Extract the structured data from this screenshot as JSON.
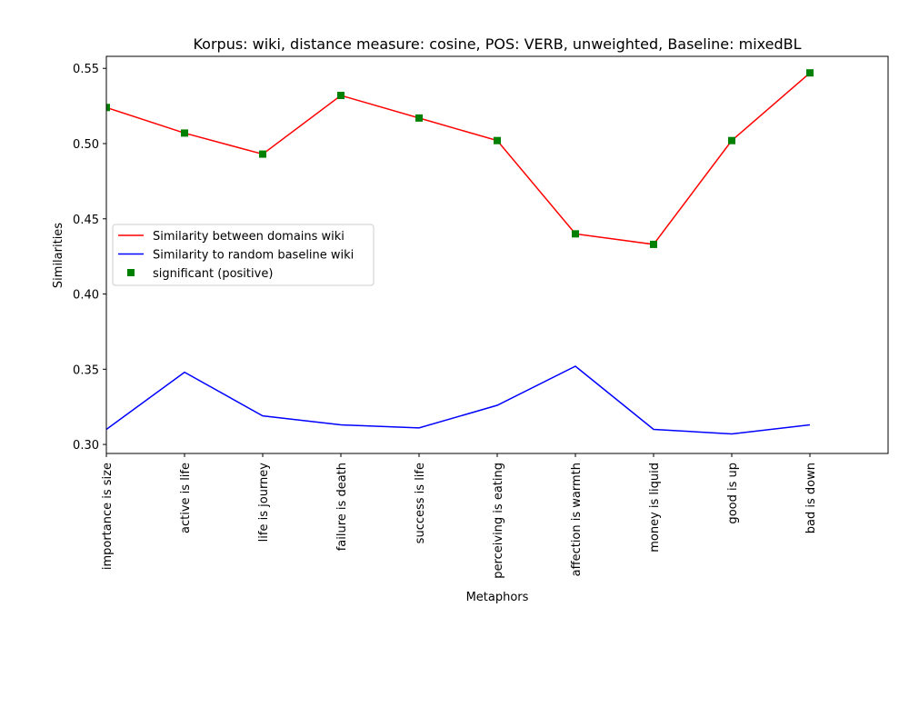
{
  "chart_data": {
    "type": "line",
    "title": "Korpus: wiki, distance measure: cosine, POS: VERB, unweighted, Baseline: mixedBL",
    "xlabel": "Metaphors",
    "ylabel": "Similarities",
    "categories": [
      "importance is size",
      "active is life",
      "life is journey",
      "failure is death",
      "success is life",
      "perceiving is eating",
      "affection is warmth",
      "money is liquid",
      "good is up",
      "bad is down"
    ],
    "ylim": [
      0.294,
      0.558
    ],
    "xlim": [
      0,
      10
    ],
    "yticks": [
      "0.30",
      "0.35",
      "0.40",
      "0.45",
      "0.50",
      "0.55"
    ],
    "grid": false,
    "legend_position": "center-left",
    "series": [
      {
        "name": "Similarity between domains wiki",
        "kind": "line",
        "color": "#ff0000",
        "values": [
          0.524,
          0.507,
          0.493,
          0.532,
          0.517,
          0.502,
          0.44,
          0.433,
          0.502,
          0.547
        ]
      },
      {
        "name": "Similarity to random baseline wiki",
        "kind": "line",
        "color": "#0000ff",
        "values": [
          0.31,
          0.348,
          0.319,
          0.313,
          0.311,
          0.326,
          0.352,
          0.31,
          0.307,
          0.313
        ]
      },
      {
        "name": "significant (positive)",
        "kind": "marker",
        "marker": "square",
        "color": "#008000",
        "values": [
          0.524,
          0.507,
          0.493,
          0.532,
          0.517,
          0.502,
          0.44,
          0.433,
          0.502,
          0.547
        ]
      }
    ]
  }
}
